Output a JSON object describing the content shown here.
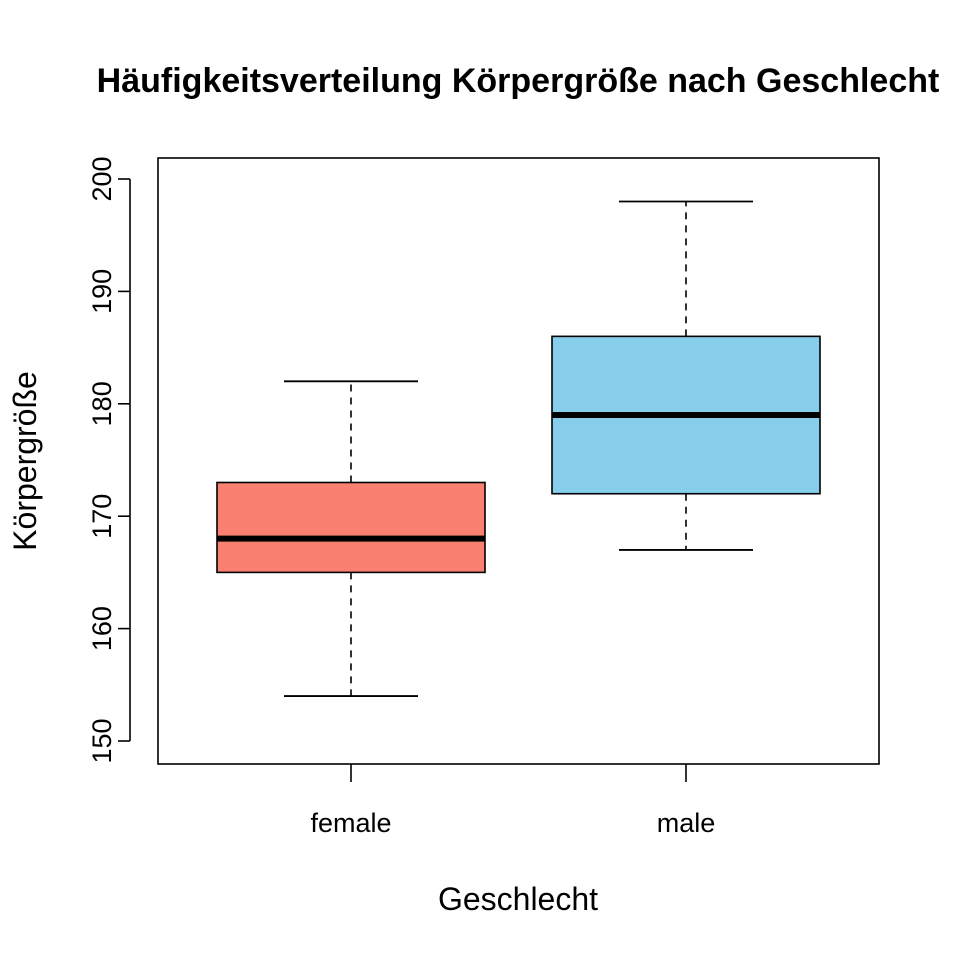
{
  "chart_data": {
    "type": "boxplot",
    "title": "Häufigkeitsverteilung Körpergröße nach Geschlecht",
    "xlabel": "Geschlecht",
    "ylabel": "Körpergröße",
    "categories": [
      "female",
      "male"
    ],
    "boxes": [
      {
        "category": "female",
        "whisker_low": 154,
        "q1": 165,
        "median": 168,
        "q3": 173,
        "whisker_high": 182,
        "fill": "#FA8072"
      },
      {
        "category": "male",
        "whisker_low": 167,
        "q1": 172,
        "median": 179,
        "q3": 186,
        "whisker_high": 198,
        "fill": "#87CEEB"
      }
    ],
    "yticks": [
      150,
      160,
      170,
      180,
      190,
      200
    ],
    "ylim": [
      148,
      202
    ],
    "grid": false,
    "legend": "none"
  }
}
